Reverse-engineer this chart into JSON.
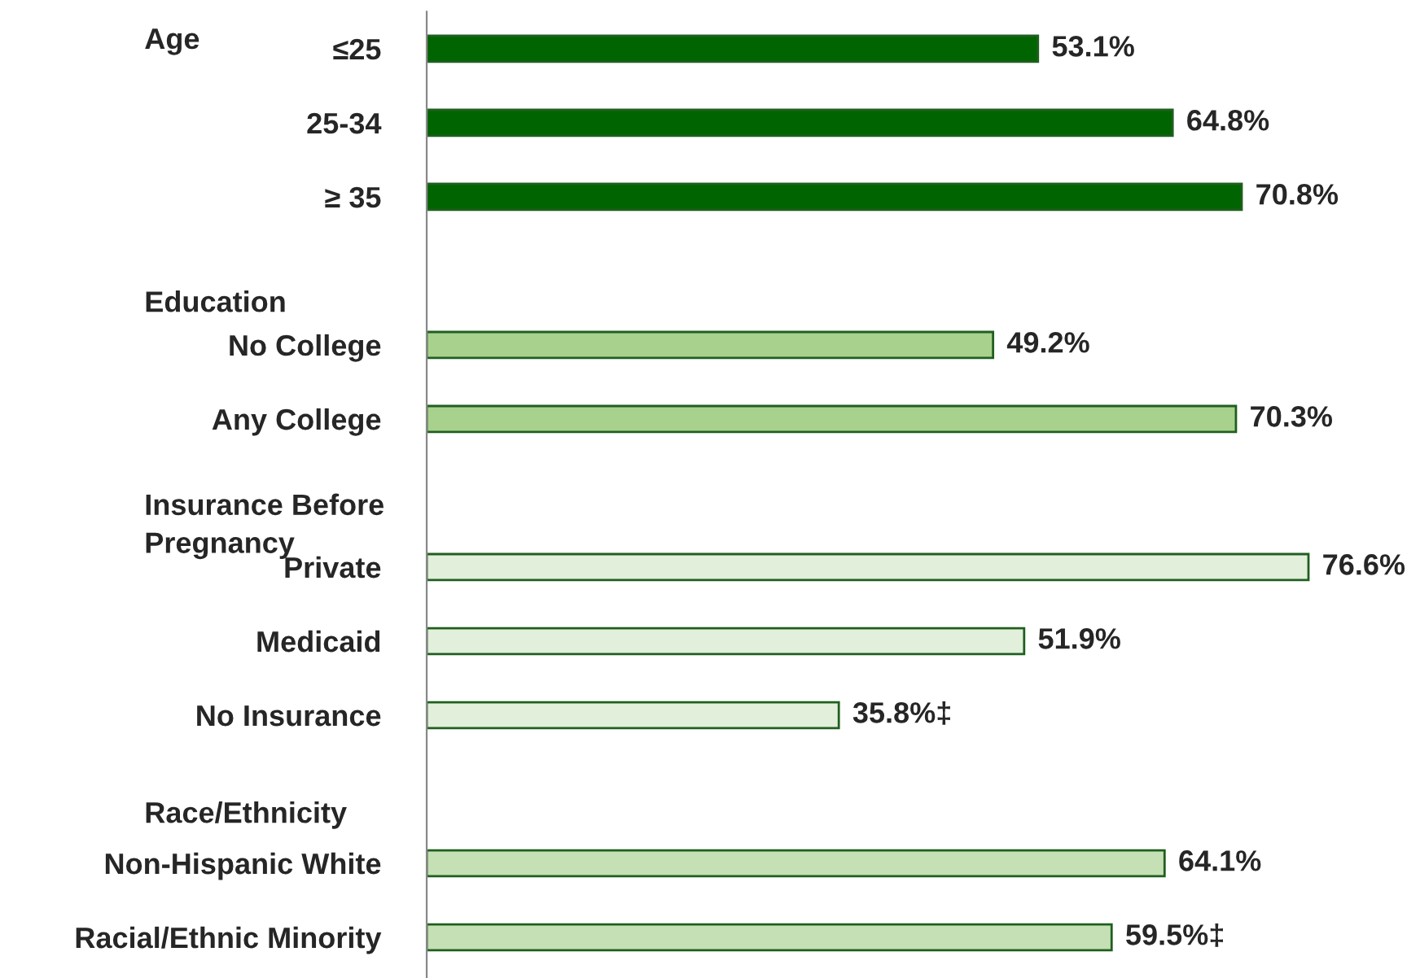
{
  "chart_data": {
    "type": "bar",
    "orientation": "horizontal",
    "categories": [
      "≤25",
      "25-34",
      "≥ 35",
      null,
      "No College",
      "Any College",
      null,
      "Private",
      "Medicaid",
      "No Insurance",
      null,
      "Non-Hispanic White",
      "Racial/Ethnic Minority"
    ],
    "values": [
      53.1,
      64.8,
      70.8,
      null,
      49.2,
      70.3,
      null,
      76.6,
      51.9,
      35.8,
      null,
      64.1,
      59.5
    ],
    "colors": [
      "#006400",
      "#006400",
      "#006400",
      null,
      "#a9d18e",
      "#a9d18e",
      null,
      "#e2efda",
      "#e2efda",
      "#e2efda",
      null,
      "#c5e0b4",
      "#c5e0b4"
    ],
    "value_labels": [
      "53.1%",
      "64.8%",
      "70.8%",
      null,
      "49.2%",
      "70.3%",
      null,
      "76.6%",
      "51.9%",
      "35.8%‡",
      null,
      "64.1%",
      "59.5%‡"
    ],
    "tick_labels": "y",
    "annotations": [
      "Age",
      "Education",
      "Insurance Before\nPregnancy",
      "Race/Ethnicity"
    ]
  }
}
